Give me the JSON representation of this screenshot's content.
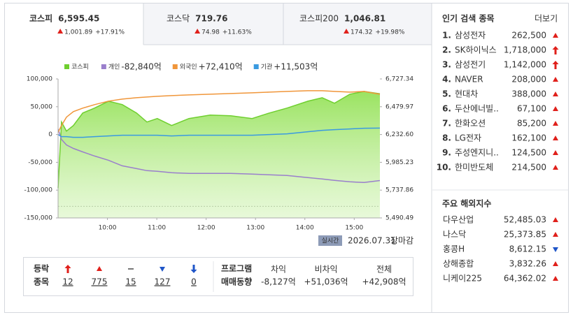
{
  "tabs": [
    {
      "name": "코스피",
      "value": "6,595.45",
      "dir": "up",
      "change": "1,001.89",
      "rate": "+17.91%"
    },
    {
      "name": "코스닥",
      "value": "719.76",
      "dir": "up",
      "change": "74.98",
      "rate": "+11.63%"
    },
    {
      "name": "코스피200",
      "value": "1,046.81",
      "dir": "up",
      "change": "174.32",
      "rate": "+19.98%"
    }
  ],
  "chart_data": {
    "type": "line",
    "x": [
      9.0,
      9.07,
      9.17,
      9.31,
      9.5,
      9.74,
      10.02,
      10.3,
      10.59,
      10.8,
      11.01,
      11.3,
      11.65,
      12.08,
      12.5,
      12.93,
      13.28,
      13.64,
      14.06,
      14.35,
      14.6,
      14.91,
      15.2,
      15.52
    ],
    "xlim": [
      9,
      15.52
    ],
    "xticks": [
      {
        "value": 10,
        "label": "10:00"
      },
      {
        "value": 11,
        "label": "11:00"
      },
      {
        "value": 12,
        "label": "12:00"
      },
      {
        "value": 13,
        "label": "13:00"
      },
      {
        "value": 14,
        "label": "14:00"
      },
      {
        "value": 15,
        "label": "15:00"
      }
    ],
    "ylim": [
      -150000,
      100000
    ],
    "yticks": [
      {
        "value": 100000,
        "label": "100,000"
      },
      {
        "value": 50000,
        "label": "50,000"
      },
      0,
      {
        "value": -50000,
        "label": "-50,000"
      },
      {
        "value": -100000,
        "label": "-100,000"
      },
      {
        "value": -150000,
        "label": "-150,000"
      }
    ],
    "y2lim": [
      5490.49,
      6727.34
    ],
    "y2ticks": [
      {
        "value": 6727.34,
        "label": "6,727.34"
      },
      {
        "value": 6479.97,
        "label": "6,479.97"
      },
      {
        "value": 6232.6,
        "label": "6,232.60"
      },
      {
        "value": 5985.23,
        "label": "5,985.23"
      },
      {
        "value": 5737.86,
        "label": "5,737.86"
      },
      {
        "value": 5490.49,
        "label": "5,490.49"
      }
    ],
    "reference_line": 5593.56,
    "series": [
      {
        "name": "코스피",
        "color": "#6fcf2f",
        "axis": "y2",
        "fill": true,
        "values": [
          5756,
          6344,
          6263,
          6313,
          6424,
          6468,
          6529,
          6499,
          6424,
          6344,
          6375,
          6313,
          6375,
          6406,
          6400,
          6375,
          6424,
          6468,
          6529,
          6560,
          6511,
          6591,
          6616,
          6595
        ]
      },
      {
        "name": "개인",
        "legend_value": "-82,840억",
        "color": "#9a7fcc",
        "values": [
          10000,
          -8750,
          -18750,
          -25000,
          -31250,
          -38750,
          -46250,
          -56250,
          -61250,
          -65000,
          -66250,
          -68750,
          -70000,
          -70000,
          -70000,
          -71250,
          -72500,
          -73750,
          -77500,
          -80000,
          -82500,
          -85000,
          -86250,
          -82840
        ]
      },
      {
        "name": "외국인",
        "legend_value": "+72,410억",
        "color": "#f0963a",
        "values": [
          3750,
          16250,
          31250,
          41250,
          47500,
          53750,
          60000,
          63750,
          66250,
          67500,
          68750,
          70000,
          71250,
          72500,
          73750,
          75000,
          76250,
          77500,
          78750,
          78750,
          77500,
          76250,
          77500,
          72410
        ]
      },
      {
        "name": "기관",
        "legend_value": "+11,503억",
        "color": "#3a9ae0",
        "values": [
          0,
          -3750,
          -3750,
          -5000,
          -5000,
          -3750,
          -2500,
          -1250,
          -1250,
          -1250,
          -1250,
          -2500,
          -1250,
          -1250,
          -1250,
          -1250,
          0,
          1250,
          5000,
          7500,
          8750,
          10000,
          11250,
          11503
        ]
      }
    ]
  },
  "chart_footer": {
    "badge": "실시간",
    "date": "2026.07.31",
    "status": "장마감"
  },
  "breadth": {
    "label": [
      "등락",
      "종목"
    ],
    "items": [
      {
        "dir": "upper",
        "count": "12"
      },
      {
        "dir": "up",
        "count": "775"
      },
      {
        "dir": "flat",
        "count": "15"
      },
      {
        "dir": "down",
        "count": "127"
      },
      {
        "dir": "lower",
        "count": "0"
      }
    ]
  },
  "program": {
    "label": [
      "프로그램",
      "매매동향"
    ],
    "headers": [
      "차익",
      "비차익",
      "전체"
    ],
    "values": [
      "-8,127억",
      "+51,036억",
      "+42,908억"
    ]
  },
  "popular": {
    "title": "인기 검색 종목",
    "more": "더보기",
    "items": [
      {
        "rank": "1.",
        "name": "삼성전자",
        "price": "262,500",
        "dir": "up"
      },
      {
        "rank": "2.",
        "name": "SK하이닉스",
        "price": "1,718,000",
        "dir": "upper"
      },
      {
        "rank": "3.",
        "name": "삼성전기",
        "price": "1,142,000",
        "dir": "upper"
      },
      {
        "rank": "4.",
        "name": "NAVER",
        "price": "208,000",
        "dir": "up"
      },
      {
        "rank": "5.",
        "name": "현대차",
        "price": "388,000",
        "dir": "up"
      },
      {
        "rank": "6.",
        "name": "두산에너빌..",
        "price": "67,100",
        "dir": "up"
      },
      {
        "rank": "7.",
        "name": "한화오션",
        "price": "85,200",
        "dir": "up"
      },
      {
        "rank": "8.",
        "name": "LG전자",
        "price": "162,100",
        "dir": "up"
      },
      {
        "rank": "9.",
        "name": "주성엔지니..",
        "price": "124,500",
        "dir": "up"
      },
      {
        "rank": "10.",
        "name": "한미반도체",
        "price": "214,500",
        "dir": "up"
      }
    ]
  },
  "overseas": {
    "title": "주요 해외지수",
    "items": [
      {
        "name": "다우산업",
        "value": "52,485.03",
        "dir": "up"
      },
      {
        "name": "나스닥",
        "value": "25,373.85",
        "dir": "up"
      },
      {
        "name": "홍콩H",
        "value": "8,612.15",
        "dir": "down"
      },
      {
        "name": "상해종합",
        "value": "3,832.26",
        "dir": "up"
      },
      {
        "name": "니케이225",
        "value": "64,362.02",
        "dir": "up"
      }
    ]
  }
}
